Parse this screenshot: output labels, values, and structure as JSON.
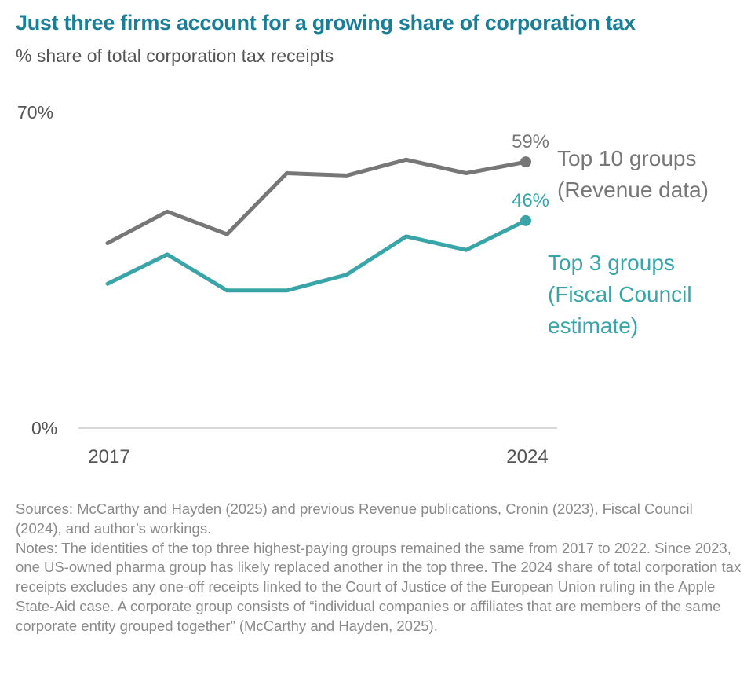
{
  "title": "Just three firms account for a growing share of corporation tax",
  "subtitle": "% share of total corporation tax receipts",
  "chart_data": {
    "type": "line",
    "x": [
      2017,
      2018,
      2019,
      2020,
      2021,
      2022,
      2023,
      2024
    ],
    "xtick_labels": [
      "2017",
      "2024"
    ],
    "ylim": [
      0,
      70
    ],
    "ytick_labels": [
      "70%",
      "0%"
    ],
    "grid": false,
    "series": [
      {
        "name": "Top 10 groups (Revenue data)",
        "label_lines": [
          "Top 10 groups",
          "(Revenue data)"
        ],
        "color": "#777777",
        "values": [
          41,
          48,
          43,
          56.5,
          56,
          59.5,
          56.5,
          59
        ],
        "end_label": "59%"
      },
      {
        "name": "Top 3 groups (Fiscal Council estimate)",
        "label_lines": [
          "Top 3 groups",
          "(Fiscal Council",
          "estimate)"
        ],
        "color": "#3aa5a8",
        "values": [
          32,
          38.5,
          30.5,
          30.5,
          34,
          42.5,
          39.5,
          46
        ],
        "end_label": "46%"
      }
    ]
  },
  "sources": "Sources: McCarthy and Hayden (2025) and previous Revenue publications, Cronin (2023), Fiscal Council (2024), and author’s workings.",
  "notes": "Notes: The identities of the top three highest-paying groups remained the same from 2017 to 2022. Since 2023, one US-owned pharma group has likely replaced another in the top three. The 2024 share of total corporation tax receipts excludes any one-off receipts linked to the Court of Justice of the European Union ruling in the Apple State-Aid case. A corporate group consists of “individual companies or affiliates that are members of the same corporate entity grouped together” (McCarthy and Hayden, 2025)."
}
